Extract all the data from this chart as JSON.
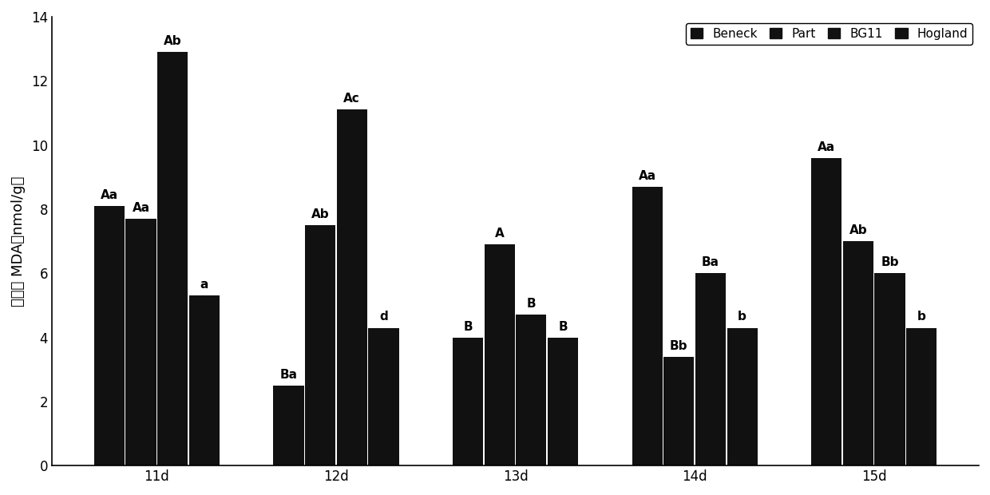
{
  "categories": [
    "11d",
    "12d",
    "13d",
    "14d",
    "15d"
  ],
  "series": {
    "Beneck": [
      8.1,
      2.5,
      4.0,
      8.7,
      9.6
    ],
    "Part": [
      7.7,
      7.5,
      6.9,
      3.4,
      7.0
    ],
    "BG11": [
      12.9,
      11.1,
      4.7,
      6.0,
      6.0
    ],
    "Hogland": [
      5.3,
      4.3,
      4.0,
      4.3,
      4.3
    ]
  },
  "labels": {
    "Beneck": [
      "Aa",
      "Ba",
      "B",
      "Aa",
      "Aa"
    ],
    "Part": [
      "Aa",
      "Ab",
      "A",
      "Bb",
      "Ab"
    ],
    "BG11": [
      "Ab",
      "Ac",
      "B",
      "Ba",
      "Bb"
    ],
    "Hogland": [
      "a",
      "d",
      "B",
      "b",
      "b"
    ]
  },
  "series_order": [
    "Beneck",
    "Part",
    "BG11",
    "Hogland"
  ],
  "bar_color": "#1a1a1a",
  "bar_colors": {
    "Beneck": "#111111",
    "Part": "#333333",
    "BG11": "#555555",
    "Hogland": "#777777"
  },
  "ylabel": "丙二醛 MDA（nmol/g）",
  "ylim": [
    0,
    14
  ],
  "yticks": [
    0,
    2,
    4,
    6,
    8,
    10,
    12,
    14
  ],
  "legend_labels": [
    "Beneck",
    "Part",
    "BG11",
    "Hogland"
  ],
  "group_width": 0.7,
  "bar_width": 0.17,
  "fontsize_label": 13,
  "fontsize_tick": 12,
  "fontsize_annot": 11
}
